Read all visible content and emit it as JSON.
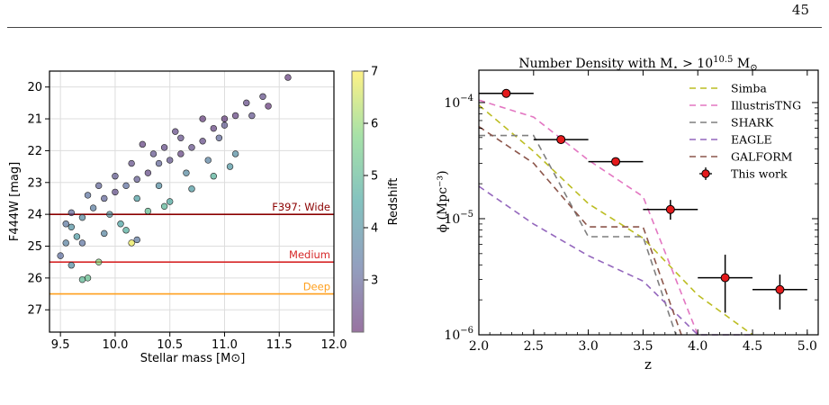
{
  "page_number": "45",
  "chart_data": [
    {
      "type": "scatter",
      "xlabel": "Stellar mass [M⊙]",
      "ylabel": "F444W [mag]",
      "xlim": [
        9.4,
        12.0
      ],
      "ylim": [
        27.7,
        19.5
      ],
      "y_inverted": true,
      "xticks": [
        "9.5",
        "10.0",
        "10.5",
        "11.0",
        "11.5",
        "12.0"
      ],
      "xtick_values": [
        9.5,
        10.0,
        10.5,
        11.0,
        11.5,
        12.0
      ],
      "yticks": [
        "20",
        "21",
        "22",
        "23",
        "24",
        "25",
        "26",
        "27"
      ],
      "ytick_values": [
        20,
        21,
        22,
        23,
        24,
        25,
        26,
        27
      ],
      "grid": true,
      "colorbar": {
        "label": "Redshift",
        "range": [
          2.0,
          7.0
        ],
        "ticks": [
          "3",
          "4",
          "5",
          "6",
          "7"
        ],
        "tick_values": [
          3,
          4,
          5,
          6,
          7
        ],
        "colormap": "viridis"
      },
      "depth_lines": [
        {
          "label": "F397: Wide",
          "mag": 24.0,
          "color": "#8b0000"
        },
        {
          "label": "Medium",
          "mag": 25.5,
          "color": "#d62728"
        },
        {
          "label": "Deep",
          "mag": 26.5,
          "color": "#ff9f1c"
        }
      ],
      "points": [
        [
          11.58,
          19.7,
          2.3
        ],
        [
          11.35,
          20.3,
          2.6
        ],
        [
          11.4,
          20.6,
          2.2
        ],
        [
          11.2,
          20.5,
          2.5
        ],
        [
          11.1,
          20.9,
          2.4
        ],
        [
          11.0,
          21.2,
          2.8
        ],
        [
          10.9,
          21.3,
          2.4
        ],
        [
          10.95,
          21.6,
          3.1
        ],
        [
          10.8,
          21.7,
          2.5
        ],
        [
          10.7,
          21.9,
          2.6
        ],
        [
          10.6,
          22.1,
          2.4
        ],
        [
          10.5,
          22.3,
          2.7
        ],
        [
          10.4,
          22.4,
          3.0
        ],
        [
          10.3,
          22.7,
          2.5
        ],
        [
          10.2,
          22.9,
          2.8
        ],
        [
          10.1,
          23.1,
          3.2
        ],
        [
          10.0,
          23.3,
          2.6
        ],
        [
          9.9,
          23.5,
          3.0
        ],
        [
          9.8,
          23.8,
          3.5
        ],
        [
          9.7,
          24.1,
          3.8
        ],
        [
          9.6,
          24.4,
          4.0
        ],
        [
          9.55,
          24.9,
          3.6
        ],
        [
          9.5,
          25.3,
          3.2
        ],
        [
          9.6,
          25.6,
          3.9
        ],
        [
          9.75,
          26.0,
          5.2
        ],
        [
          9.7,
          26.05,
          5.0
        ],
        [
          9.85,
          25.5,
          5.8
        ],
        [
          10.15,
          24.9,
          6.8
        ],
        [
          10.2,
          24.8,
          3.4
        ],
        [
          10.05,
          24.3,
          4.4
        ],
        [
          10.5,
          23.6,
          4.6
        ],
        [
          10.7,
          23.2,
          4.2
        ],
        [
          10.9,
          22.8,
          4.8
        ],
        [
          11.1,
          22.1,
          3.9
        ],
        [
          11.0,
          21.0,
          2.3
        ],
        [
          10.3,
          23.9,
          5.1
        ],
        [
          10.45,
          23.75,
          4.9
        ],
        [
          9.65,
          24.7,
          4.2
        ],
        [
          9.9,
          24.6,
          3.7
        ],
        [
          10.6,
          21.6,
          2.6
        ],
        [
          10.45,
          21.9,
          2.5
        ],
        [
          10.35,
          22.1,
          2.7
        ],
        [
          10.15,
          22.4,
          2.6
        ],
        [
          10.0,
          22.8,
          2.8
        ],
        [
          9.85,
          23.1,
          3.0
        ],
        [
          9.75,
          23.4,
          3.3
        ],
        [
          10.25,
          21.8,
          2.4
        ],
        [
          10.55,
          21.4,
          2.5
        ],
        [
          10.8,
          21.0,
          2.3
        ],
        [
          11.25,
          20.9,
          2.7
        ],
        [
          11.05,
          22.5,
          4.1
        ],
        [
          10.85,
          22.3,
          3.6
        ],
        [
          10.65,
          22.7,
          3.8
        ],
        [
          10.4,
          23.1,
          3.9
        ],
        [
          10.2,
          23.5,
          4.3
        ],
        [
          9.95,
          24.0,
          4.1
        ],
        [
          9.6,
          23.95,
          3.1
        ],
        [
          9.55,
          24.3,
          3.4
        ],
        [
          9.7,
          24.9,
          3.3
        ],
        [
          10.1,
          24.5,
          4.7
        ]
      ]
    },
    {
      "type": "line",
      "title": "Number Density with M⋆ > 10¹⁰ᐧ⁵ M⊙",
      "title_parts": {
        "prefix": "Number Density with M",
        "sub": "⋆",
        "mid": " > 10",
        "sup": "10.5",
        "suffix": " M",
        "sub2": "⊙"
      },
      "xlabel": "z",
      "ylabel": "ϕ (Mpc⁻³)",
      "xlim": [
        2.0,
        5.1
      ],
      "ylim": [
        1e-06,
        0.00019
      ],
      "y_scale": "log",
      "xticks": [
        "2.0",
        "2.5",
        "3.0",
        "3.5",
        "4.0",
        "4.5",
        "5.0"
      ],
      "xtick_values": [
        2.0,
        2.5,
        3.0,
        3.5,
        4.0,
        4.5,
        5.0
      ],
      "yticks": [
        {
          "base": "10",
          "exp": "−6",
          "value": 1e-06
        },
        {
          "base": "10",
          "exp": "−5",
          "value": 1e-05
        },
        {
          "base": "10",
          "exp": "−4",
          "value": 0.0001
        }
      ],
      "legend_position": "top-right",
      "series": [
        {
          "name": "Simba",
          "color": "#bcbd22",
          "dash": "7,5",
          "x": [
            2.0,
            2.5,
            3.0,
            3.5,
            4.0,
            4.5
          ],
          "y": [
            9.5e-05,
            3.8e-05,
            1.35e-05,
            6.8e-06,
            2.2e-06,
            1e-06
          ]
        },
        {
          "name": "IllustrisTNG",
          "color": "#e377c2",
          "dash": "7,5",
          "x": [
            2.0,
            2.5,
            3.0,
            3.5,
            4.0
          ],
          "y": [
            0.000105,
            7.5e-05,
            3.2e-05,
            1.55e-05,
            1e-06
          ]
        },
        {
          "name": "SHARK",
          "color": "#7f7f7f",
          "dash": "7,5",
          "x": [
            2.0,
            2.5,
            3.0,
            3.5,
            3.8
          ],
          "y": [
            5.2e-05,
            5.2e-05,
            7e-06,
            7e-06,
            1e-06
          ]
        },
        {
          "name": "EAGLE",
          "color": "#9467bd",
          "dash": "7,5",
          "x": [
            2.0,
            2.5,
            3.0,
            3.5,
            4.0,
            4.5
          ],
          "y": [
            1.9e-05,
            9e-06,
            4.8e-06,
            2.9e-06,
            1e-06,
            1e-06
          ]
        },
        {
          "name": "GALFORM",
          "color": "#8c564b",
          "dash": "7,5",
          "x": [
            2.0,
            2.5,
            3.0,
            3.5,
            3.85
          ],
          "y": [
            6.2e-05,
            3e-05,
            8.5e-06,
            8.5e-06,
            1e-06
          ]
        }
      ],
      "points": {
        "name": "This work",
        "color": "#e41a1c",
        "x": [
          2.25,
          2.75,
          3.25,
          3.75,
          4.25,
          4.75
        ],
        "x_err": [
          0.25,
          0.25,
          0.25,
          0.25,
          0.25,
          0.25
        ],
        "y": [
          0.00012,
          4.8e-05,
          3.1e-05,
          1.2e-05,
          3.1e-06,
          2.45e-06
        ],
        "y_low": [
          0.000112,
          4.5e-05,
          2.9e-05,
          9.8e-06,
          1.55e-06,
          1.65e-06
        ],
        "y_high": [
          0.000128,
          5.1e-05,
          3.3e-05,
          1.45e-05,
          4.9e-06,
          3.3e-06
        ]
      }
    }
  ]
}
